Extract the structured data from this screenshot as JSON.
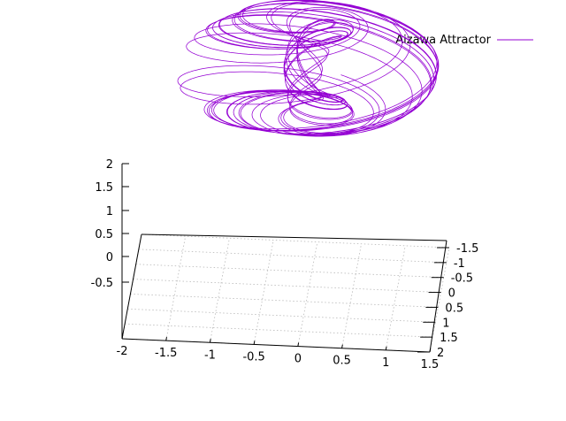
{
  "chart_data": {
    "type": "line",
    "title": "",
    "legend": {
      "position": "top-right",
      "entries": [
        {
          "name": "Aizawa Attractor",
          "color": "#9400d3"
        }
      ]
    },
    "series": [
      {
        "name": "Aizawa Attractor",
        "color": "#9400d3",
        "system": "aizawa",
        "style": "3d-line"
      }
    ],
    "axes": {
      "x": {
        "ticks": [
          "-2",
          "-1.5",
          "-1",
          "-0.5",
          "0",
          "0.5",
          "1",
          "1.5"
        ],
        "range": [
          -2,
          1.5
        ]
      },
      "y": {
        "ticks": [
          "-1.5",
          "-1",
          "-0.5",
          "0",
          "0.5",
          "1",
          "1.5",
          "2"
        ],
        "range": [
          -1.5,
          2
        ]
      },
      "z": {
        "ticks": [
          "-0.5",
          "0",
          "0.5",
          "1",
          "1.5",
          "2"
        ],
        "range": [
          -0.5,
          2
        ]
      }
    },
    "grid": true
  }
}
